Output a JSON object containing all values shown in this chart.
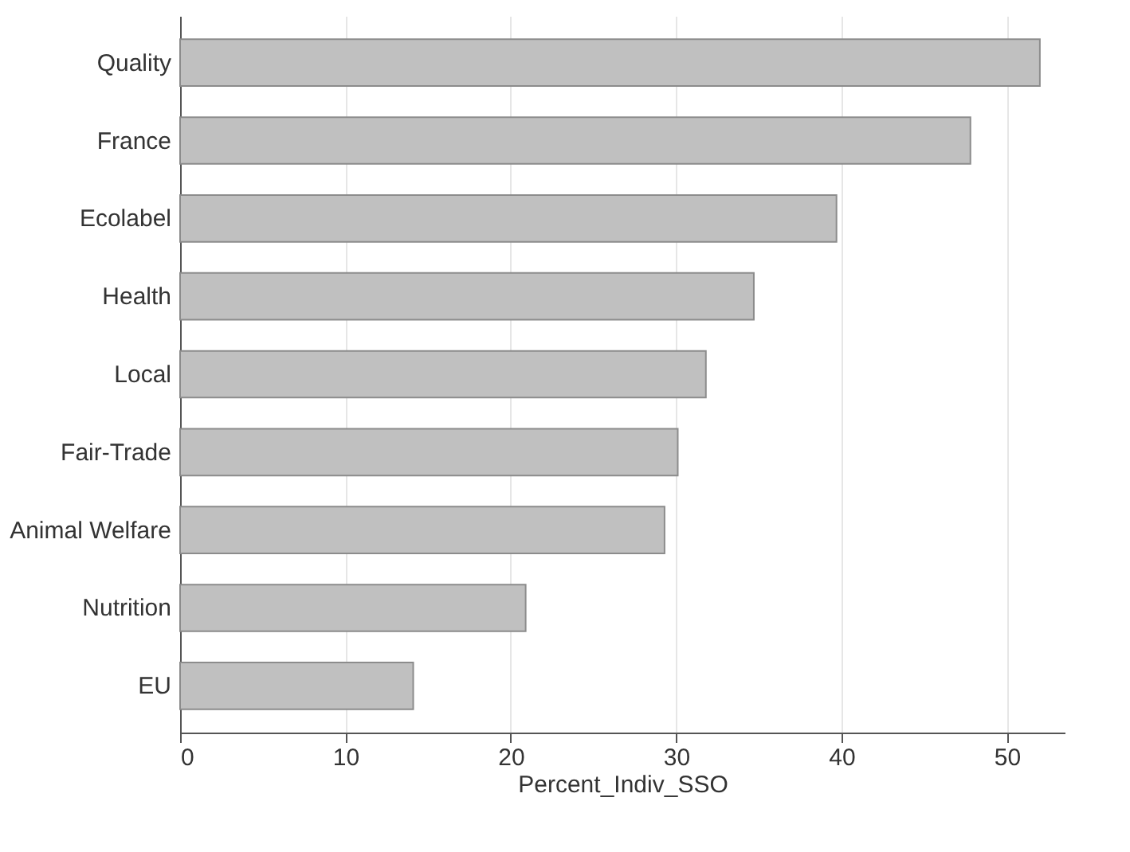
{
  "chart_data": {
    "type": "bar",
    "orientation": "horizontal",
    "xlabel": "Percent_Indiv_SSO",
    "categories": [
      "Quality",
      "France",
      "Ecolabel",
      "Health",
      "Local",
      "Fair-Trade",
      "Animal Welfare",
      "Nutrition",
      "EU"
    ],
    "values": [
      52.0,
      47.8,
      39.7,
      34.7,
      31.8,
      30.1,
      29.3,
      20.9,
      14.1
    ],
    "color": "#c0c0c0",
    "xlim": [
      0,
      53.5
    ],
    "xticks": [
      0,
      10,
      20,
      30,
      40,
      50
    ],
    "grid": "x"
  }
}
